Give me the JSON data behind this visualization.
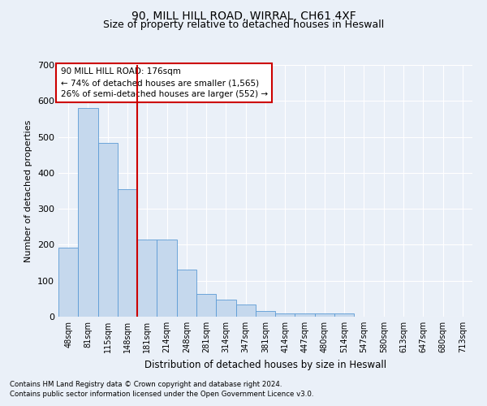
{
  "title1": "90, MILL HILL ROAD, WIRRAL, CH61 4XF",
  "title2": "Size of property relative to detached houses in Heswall",
  "xlabel": "Distribution of detached houses by size in Heswall",
  "ylabel": "Number of detached properties",
  "bar_labels": [
    "48sqm",
    "81sqm",
    "115sqm",
    "148sqm",
    "181sqm",
    "214sqm",
    "248sqm",
    "281sqm",
    "314sqm",
    "347sqm",
    "381sqm",
    "414sqm",
    "447sqm",
    "480sqm",
    "514sqm",
    "547sqm",
    "580sqm",
    "613sqm",
    "647sqm",
    "680sqm",
    "713sqm"
  ],
  "bar_values": [
    193,
    580,
    483,
    354,
    215,
    215,
    130,
    64,
    48,
    35,
    15,
    8,
    8,
    10,
    8,
    0,
    0,
    0,
    0,
    0,
    0
  ],
  "bar_color": "#c5d8ed",
  "bar_edge_color": "#5b9bd5",
  "vline_color": "#cc0000",
  "annotation_text": "90 MILL HILL ROAD: 176sqm\n← 74% of detached houses are smaller (1,565)\n26% of semi-detached houses are larger (552) →",
  "annotation_box_color": "#ffffff",
  "annotation_box_edge": "#cc0000",
  "background_color": "#eaf0f8",
  "grid_color": "#ffffff",
  "footnote1": "Contains HM Land Registry data © Crown copyright and database right 2024.",
  "footnote2": "Contains public sector information licensed under the Open Government Licence v3.0.",
  "ylim": [
    0,
    700
  ],
  "yticks": [
    0,
    100,
    200,
    300,
    400,
    500,
    600,
    700
  ]
}
